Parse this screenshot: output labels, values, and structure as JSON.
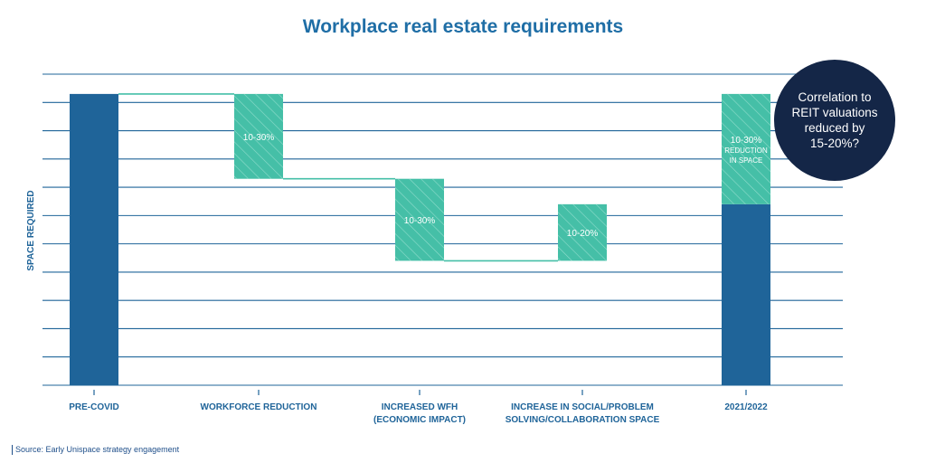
{
  "chart_data": {
    "type": "bar",
    "subtype": "waterfall",
    "title": "Workplace real estate requirements",
    "ylabel": "SPACE REQUIRED",
    "xlabel": "",
    "ylim": [
      0,
      11
    ],
    "grid": true,
    "categories": [
      [
        "PRE-COVID"
      ],
      [
        "WORKFORCE REDUCTION"
      ],
      [
        "INCREASED WFH",
        "(ECONOMIC IMPACT)"
      ],
      [
        "INCREASE IN SOCIAL/PROBLEM",
        "SOLVING/COLLABORATION SPACE"
      ],
      [
        "2021/2022"
      ]
    ],
    "bars": [
      {
        "category": "PRE-COVID",
        "kind": "total",
        "bottom": 0,
        "top": 10.3
      },
      {
        "category": "WORKFORCE REDUCTION",
        "kind": "change",
        "bottom": 7.3,
        "top": 10.3,
        "label": [
          "10-30%"
        ]
      },
      {
        "category": "INCREASED WFH (ECONOMIC IMPACT)",
        "kind": "change",
        "bottom": 4.4,
        "top": 7.3,
        "label": [
          "10-30%"
        ]
      },
      {
        "category": "INCREASE IN SOCIAL/PROBLEM SOLVING/COLLABORATION SPACE",
        "kind": "change",
        "bottom": 4.4,
        "top": 6.4,
        "label": [
          "10-20%"
        ]
      },
      {
        "category": "2021/2022",
        "kind": "total",
        "bottom": 0,
        "top": 6.4
      },
      {
        "category": "2021/2022",
        "kind": "change",
        "bottom": 6.4,
        "top": 10.3,
        "label": [
          "10-30%",
          "REDUCTION",
          "IN SPACE"
        ]
      }
    ],
    "connectors": [
      {
        "from": 0,
        "to": 1,
        "y": 10.3
      },
      {
        "from": 1,
        "to": 2,
        "y": 7.3
      },
      {
        "from": 2,
        "to": 3,
        "y": 4.4
      }
    ],
    "annotation": {
      "lines": [
        "Correlation to",
        "REIT valuations",
        "reduced by",
        "15-20%?"
      ]
    }
  },
  "source": "Source: Early Unispace strategy engagement",
  "colors": {
    "total": "#1f6499",
    "change": "#45bfa7",
    "hatch": "#8fdccb",
    "connector": "#45bfa7",
    "grid": "#1f6499",
    "axis_text": "#1f6499",
    "callout": "#142647"
  }
}
